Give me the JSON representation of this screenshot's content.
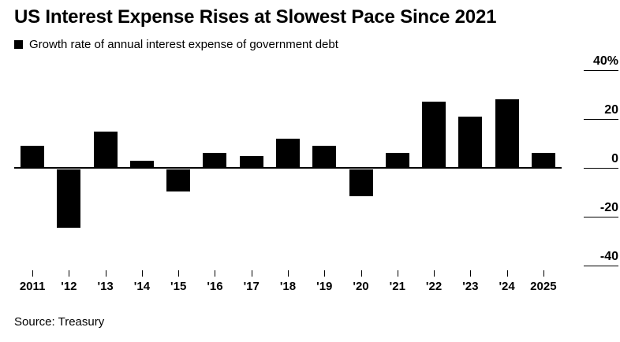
{
  "title": "US Interest Expense Rises at Slowest Pace Since 2021",
  "legend": {
    "label": "Growth rate of annual interest expense of government debt",
    "swatch_color": "#000000"
  },
  "source": "Source: Treasury",
  "chart_data": {
    "type": "bar",
    "title": "US Interest Expense Rises at Slowest Pace Since 2021",
    "subtitle": "Growth rate of annual interest expense of government debt",
    "categories": [
      "2011",
      "'12",
      "'13",
      "'14",
      "'15",
      "'16",
      "'17",
      "'18",
      "'19",
      "'20",
      "'21",
      "'22",
      "'23",
      "'24",
      "2025"
    ],
    "values": [
      9,
      -24,
      15,
      3,
      -9,
      6,
      5,
      12,
      9,
      -11,
      6,
      27,
      21,
      28,
      6
    ],
    "xlabel": "",
    "ylabel": "",
    "ylim": [
      -45,
      42
    ],
    "yticks": [
      {
        "value": 40,
        "label": "40%"
      },
      {
        "value": 20,
        "label": "20"
      },
      {
        "value": 0,
        "label": "0"
      },
      {
        "value": -20,
        "label": "-20"
      },
      {
        "value": -40,
        "label": "-40"
      }
    ],
    "y_axis_position": "right",
    "grid": false,
    "legend_position": "top-left",
    "bar_color": "#000000"
  }
}
